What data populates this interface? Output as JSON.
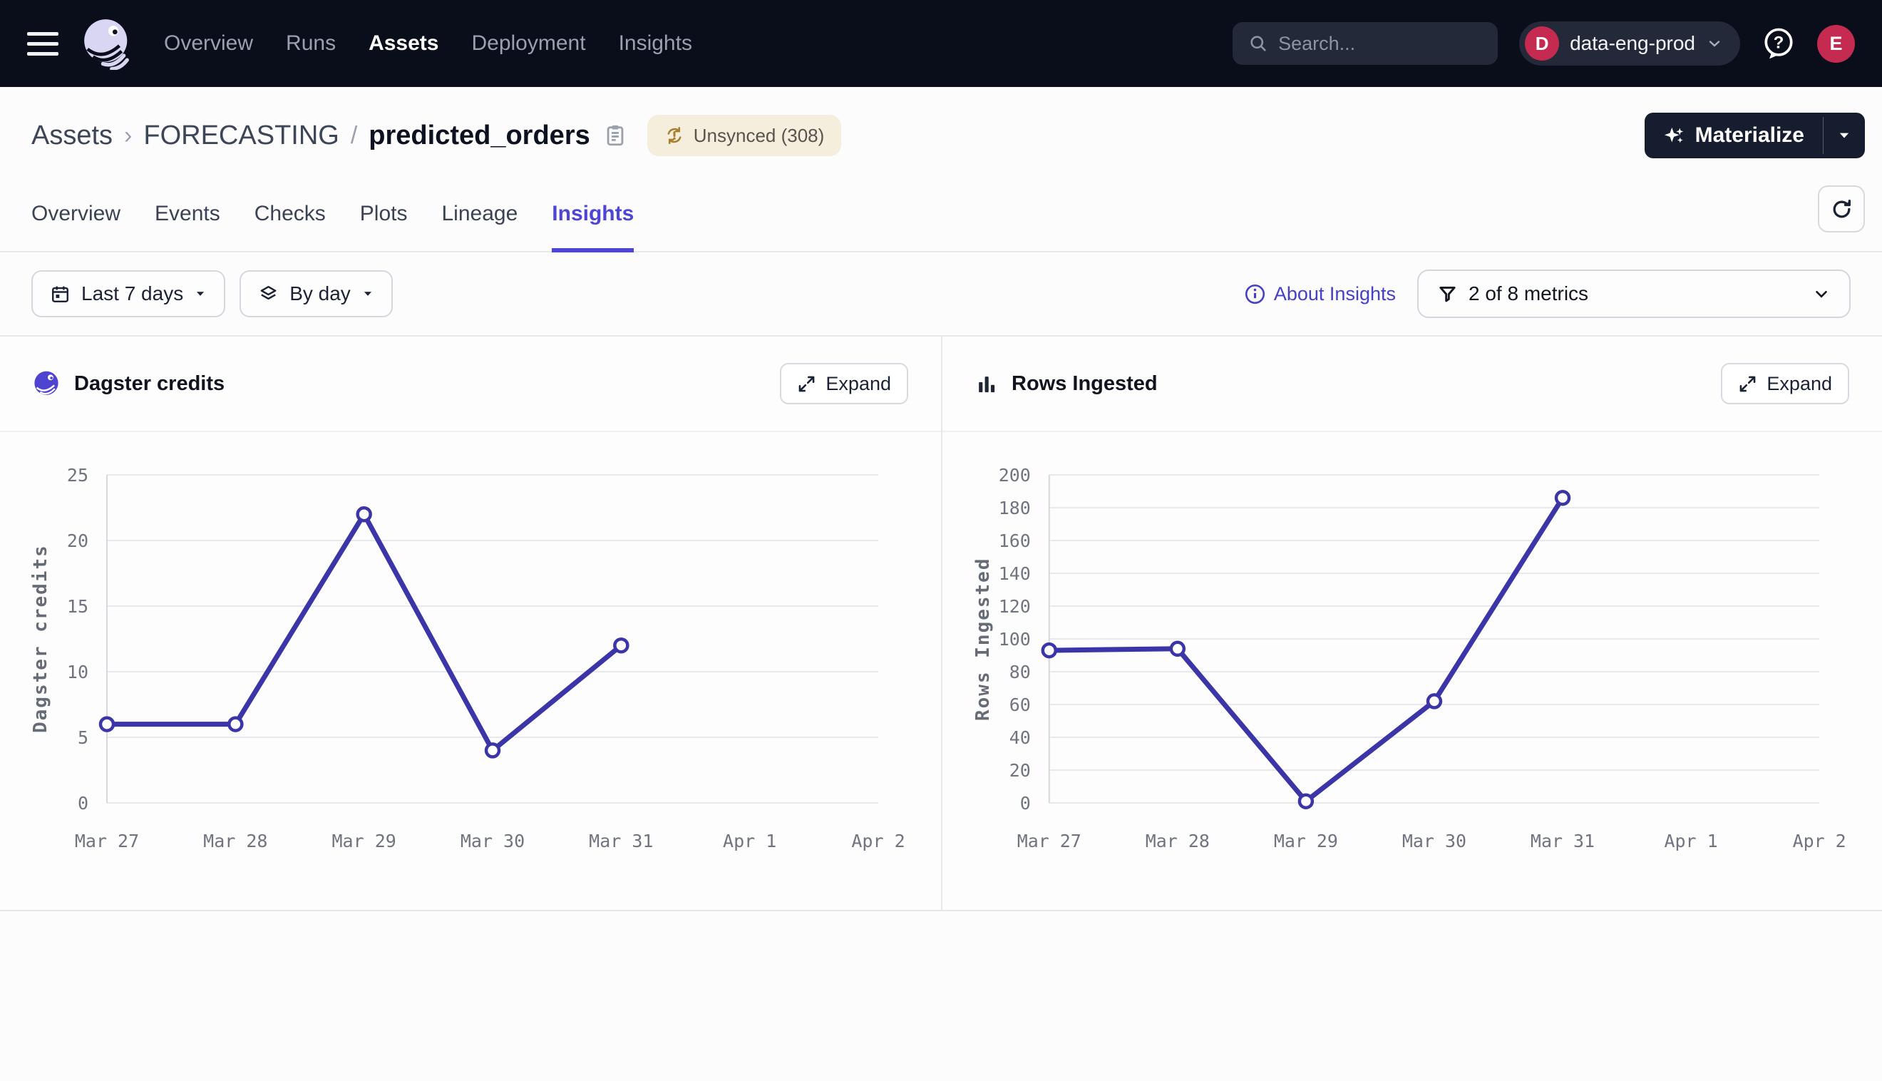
{
  "colors": {
    "topbar_bg": "#0A0D1A",
    "accent_indigo": "#4F45D4",
    "chart_line": "#3B35A8",
    "crimson": "#C52B50",
    "badge_bg": "#F6EEDC",
    "badge_icon": "#A6802F"
  },
  "topbar": {
    "nav": [
      {
        "label": "Overview",
        "active": false
      },
      {
        "label": "Runs",
        "active": false
      },
      {
        "label": "Assets",
        "active": true
      },
      {
        "label": "Deployment",
        "active": false
      },
      {
        "label": "Insights",
        "active": false
      }
    ],
    "search": {
      "placeholder": "Search...",
      "shortcut_hint": "/"
    },
    "workspace": {
      "initial": "D",
      "name": "data-eng-prod"
    },
    "user_initial": "E"
  },
  "page_header": {
    "breadcrumb": {
      "root": "Assets",
      "chevron": "›",
      "group": "FORECASTING",
      "slash": "/",
      "asset": "predicted_orders"
    },
    "sync_badge": "Unsynced (308)",
    "materialize_label": "Materialize"
  },
  "tabs": [
    {
      "label": "Overview",
      "active": false
    },
    {
      "label": "Events",
      "active": false
    },
    {
      "label": "Checks",
      "active": false
    },
    {
      "label": "Plots",
      "active": false
    },
    {
      "label": "Lineage",
      "active": false
    },
    {
      "label": "Insights",
      "active": true
    }
  ],
  "filters": {
    "time_range": "Last 7 days",
    "granularity": "By day",
    "about_link": "About Insights",
    "metrics_filter": "2 of 8 metrics"
  },
  "chart_data": [
    {
      "type": "line",
      "title": "Dagster credits",
      "ylabel": "Dagster credits",
      "expand_label": "Expand",
      "categories": [
        "Mar 27",
        "Mar 28",
        "Mar 29",
        "Mar 30",
        "Mar 31",
        "Apr 1",
        "Apr 2"
      ],
      "values": [
        6,
        6,
        22,
        4,
        12
      ],
      "ylim": [
        0,
        25
      ],
      "yticks": [
        0,
        5,
        10,
        15,
        20,
        25
      ],
      "grid": true,
      "legend": false,
      "line_color": "#3B35A8",
      "icon": "dagster-logo-icon"
    },
    {
      "type": "line",
      "title": "Rows Ingested",
      "ylabel": "Rows Ingested",
      "expand_label": "Expand",
      "categories": [
        "Mar 27",
        "Mar 28",
        "Mar 29",
        "Mar 30",
        "Mar 31",
        "Apr 1",
        "Apr 2"
      ],
      "values": [
        93,
        94,
        1,
        62,
        186
      ],
      "ylim": [
        0,
        200
      ],
      "yticks": [
        0,
        20,
        40,
        60,
        80,
        100,
        120,
        140,
        160,
        180,
        200
      ],
      "grid": true,
      "legend": false,
      "line_color": "#3B35A8",
      "icon": "bar-chart-icon"
    }
  ]
}
